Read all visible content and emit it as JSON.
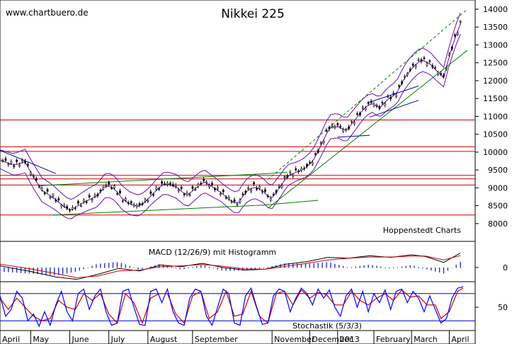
{
  "site": "www.chartbuero.de",
  "credit": "Hoppenstedt Charts",
  "colors": {
    "price": "#000000",
    "hline": "#cc0000",
    "band": "#6a0dad",
    "trend": "#008000",
    "channel": "#0000aa",
    "macd_hist": "#2233cc",
    "signal": "#cc0000",
    "stoch_k": "#0000ff",
    "stoch_d": "#cc0000",
    "stoch_line": "#0000cc"
  },
  "chart_data": [
    {
      "type": "candlestick",
      "title": "Nikkei 225",
      "ylim": [
        7700,
        14000
      ],
      "yticks": [
        {
          "v": 14000,
          "label": "14000"
        },
        {
          "v": 13500,
          "label": "13500"
        },
        {
          "v": 13000,
          "label": "13000"
        },
        {
          "v": 12500,
          "label": "12500"
        },
        {
          "v": 12000,
          "label": "12000"
        },
        {
          "v": 11500,
          "label": "11500"
        },
        {
          "v": 11000,
          "label": "11000"
        },
        {
          "v": 10500,
          "label": "10500"
        },
        {
          "v": 10000,
          "label": "10000"
        },
        {
          "v": 9500,
          "label": "9500"
        },
        {
          "v": 9000,
          "label": "9000"
        },
        {
          "v": 8500,
          "label": "8500"
        },
        {
          "v": 8000,
          "label": "8000"
        }
      ],
      "xlabels": [
        {
          "day": 0,
          "label": "April"
        },
        {
          "day": 22,
          "label": "May"
        },
        {
          "day": 50,
          "label": "June"
        },
        {
          "day": 78,
          "label": "July"
        },
        {
          "day": 106,
          "label": "August"
        },
        {
          "day": 138,
          "label": "September"
        },
        {
          "day": 195,
          "label": "November"
        },
        {
          "day": 222,
          "label": "December"
        },
        {
          "day": 242,
          "label": "2013"
        },
        {
          "day": 268,
          "label": "February"
        },
        {
          "day": 295,
          "label": "March"
        },
        {
          "day": 322,
          "label": "April"
        }
      ],
      "xdays": 335,
      "horizontal_lines": [
        10900,
        10150,
        10020,
        9350,
        9250,
        9080,
        8240
      ],
      "close": [
        {
          "d": 0,
          "v": 9800
        },
        {
          "d": 10,
          "v": 9650
        },
        {
          "d": 18,
          "v": 9750
        },
        {
          "d": 22,
          "v": 9450
        },
        {
          "d": 30,
          "v": 8950
        },
        {
          "d": 38,
          "v": 8750
        },
        {
          "d": 44,
          "v": 8550
        },
        {
          "d": 50,
          "v": 8380
        },
        {
          "d": 56,
          "v": 8520
        },
        {
          "d": 62,
          "v": 8650
        },
        {
          "d": 70,
          "v": 8800
        },
        {
          "d": 76,
          "v": 9100
        },
        {
          "d": 82,
          "v": 9000
        },
        {
          "d": 88,
          "v": 8700
        },
        {
          "d": 94,
          "v": 8550
        },
        {
          "d": 100,
          "v": 8500
        },
        {
          "d": 106,
          "v": 8700
        },
        {
          "d": 112,
          "v": 8950
        },
        {
          "d": 118,
          "v": 9150
        },
        {
          "d": 126,
          "v": 9050
        },
        {
          "d": 134,
          "v": 8800
        },
        {
          "d": 140,
          "v": 9000
        },
        {
          "d": 146,
          "v": 9200
        },
        {
          "d": 152,
          "v": 9050
        },
        {
          "d": 158,
          "v": 8900
        },
        {
          "d": 164,
          "v": 8700
        },
        {
          "d": 170,
          "v": 8550
        },
        {
          "d": 176,
          "v": 8900
        },
        {
          "d": 182,
          "v": 9050
        },
        {
          "d": 188,
          "v": 8950
        },
        {
          "d": 194,
          "v": 8700
        },
        {
          "d": 200,
          "v": 9000
        },
        {
          "d": 206,
          "v": 9350
        },
        {
          "d": 212,
          "v": 9450
        },
        {
          "d": 218,
          "v": 9550
        },
        {
          "d": 224,
          "v": 9750
        },
        {
          "d": 230,
          "v": 10200
        },
        {
          "d": 236,
          "v": 10700
        },
        {
          "d": 242,
          "v": 10750
        },
        {
          "d": 248,
          "v": 10600
        },
        {
          "d": 254,
          "v": 10900
        },
        {
          "d": 260,
          "v": 11200
        },
        {
          "d": 266,
          "v": 11400
        },
        {
          "d": 272,
          "v": 11250
        },
        {
          "d": 278,
          "v": 11500
        },
        {
          "d": 284,
          "v": 11650
        },
        {
          "d": 290,
          "v": 12100
        },
        {
          "d": 296,
          "v": 12400
        },
        {
          "d": 302,
          "v": 12600
        },
        {
          "d": 308,
          "v": 12500
        },
        {
          "d": 314,
          "v": 12250
        },
        {
          "d": 318,
          "v": 12100
        },
        {
          "d": 322,
          "v": 12700
        },
        {
          "d": 326,
          "v": 13200
        },
        {
          "d": 330,
          "v": 13600
        }
      ],
      "trendlines": [
        {
          "d1": 38,
          "v1": 8240,
          "d2": 190,
          "v2": 8520,
          "color": "trend"
        },
        {
          "d1": 28,
          "v1": 9060,
          "d2": 206,
          "v2": 9430,
          "color": "trend"
        },
        {
          "d1": 190,
          "v1": 8520,
          "d2": 228,
          "v2": 8650,
          "color": "trend"
        },
        {
          "d1": 192,
          "v1": 8430,
          "d2": 335,
          "v2": 12850,
          "color": "trend"
        },
        {
          "d1": 192,
          "v1": 9230,
          "d2": 335,
          "v2": 14000,
          "color": "trend",
          "dashed": true
        },
        {
          "d1": 0,
          "v1": 10050,
          "d2": 40,
          "v2": 9400,
          "color": "channel"
        },
        {
          "d1": 242,
          "v1": 10420,
          "d2": 265,
          "v2": 10470,
          "color": "channel"
        },
        {
          "d1": 265,
          "v1": 11400,
          "d2": 300,
          "v2": 11850,
          "color": "channel"
        },
        {
          "d1": 265,
          "v1": 10980,
          "d2": 300,
          "v2": 11450,
          "color": "channel"
        }
      ]
    },
    {
      "type": "line",
      "title": "MACD (12/26/9) mit Histogramm",
      "ylim": [
        -1,
        1
      ],
      "yticks": [
        {
          "v": 0,
          "label": "0"
        }
      ],
      "macd": [
        {
          "d": 0,
          "v": 0.1
        },
        {
          "d": 20,
          "v": -0.2
        },
        {
          "d": 40,
          "v": -0.55
        },
        {
          "d": 55,
          "v": -0.7
        },
        {
          "d": 70,
          "v": -0.4
        },
        {
          "d": 85,
          "v": -0.05
        },
        {
          "d": 100,
          "v": -0.2
        },
        {
          "d": 115,
          "v": 0.15
        },
        {
          "d": 130,
          "v": 0.05
        },
        {
          "d": 145,
          "v": 0.25
        },
        {
          "d": 160,
          "v": 0.0
        },
        {
          "d": 175,
          "v": -0.15
        },
        {
          "d": 190,
          "v": -0.1
        },
        {
          "d": 205,
          "v": 0.2
        },
        {
          "d": 220,
          "v": 0.35
        },
        {
          "d": 235,
          "v": 0.6
        },
        {
          "d": 250,
          "v": 0.55
        },
        {
          "d": 265,
          "v": 0.7
        },
        {
          "d": 280,
          "v": 0.6
        },
        {
          "d": 295,
          "v": 0.75
        },
        {
          "d": 305,
          "v": 0.65
        },
        {
          "d": 318,
          "v": 0.3
        },
        {
          "d": 330,
          "v": 0.85
        }
      ],
      "signal": [
        {
          "d": 0,
          "v": 0.2
        },
        {
          "d": 20,
          "v": -0.05
        },
        {
          "d": 40,
          "v": -0.35
        },
        {
          "d": 55,
          "v": -0.6
        },
        {
          "d": 70,
          "v": -0.5
        },
        {
          "d": 85,
          "v": -0.2
        },
        {
          "d": 100,
          "v": -0.15
        },
        {
          "d": 115,
          "v": 0.05
        },
        {
          "d": 130,
          "v": 0.1
        },
        {
          "d": 145,
          "v": 0.18
        },
        {
          "d": 160,
          "v": 0.08
        },
        {
          "d": 175,
          "v": -0.08
        },
        {
          "d": 190,
          "v": -0.1
        },
        {
          "d": 205,
          "v": 0.08
        },
        {
          "d": 220,
          "v": 0.25
        },
        {
          "d": 235,
          "v": 0.45
        },
        {
          "d": 250,
          "v": 0.55
        },
        {
          "d": 265,
          "v": 0.62
        },
        {
          "d": 280,
          "v": 0.62
        },
        {
          "d": 295,
          "v": 0.68
        },
        {
          "d": 305,
          "v": 0.68
        },
        {
          "d": 318,
          "v": 0.45
        },
        {
          "d": 330,
          "v": 0.7
        }
      ]
    },
    {
      "type": "line",
      "title": "Stochastik (5/3/3)",
      "ylim": [
        0,
        100
      ],
      "yticks": [
        {
          "v": 50,
          "label": "50"
        }
      ],
      "levels": [
        80,
        20
      ],
      "k": [
        {
          "d": 0,
          "v": 75
        },
        {
          "d": 4,
          "v": 30
        },
        {
          "d": 8,
          "v": 45
        },
        {
          "d": 12,
          "v": 85
        },
        {
          "d": 16,
          "v": 70
        },
        {
          "d": 20,
          "v": 20
        },
        {
          "d": 24,
          "v": 35
        },
        {
          "d": 28,
          "v": 8
        },
        {
          "d": 32,
          "v": 40
        },
        {
          "d": 36,
          "v": 10
        },
        {
          "d": 40,
          "v": 55
        },
        {
          "d": 44,
          "v": 85
        },
        {
          "d": 48,
          "v": 40
        },
        {
          "d": 52,
          "v": 20
        },
        {
          "d": 56,
          "v": 80
        },
        {
          "d": 60,
          "v": 90
        },
        {
          "d": 64,
          "v": 45
        },
        {
          "d": 68,
          "v": 75
        },
        {
          "d": 72,
          "v": 90
        },
        {
          "d": 76,
          "v": 40
        },
        {
          "d": 80,
          "v": 10
        },
        {
          "d": 84,
          "v": 15
        },
        {
          "d": 88,
          "v": 85
        },
        {
          "d": 92,
          "v": 90
        },
        {
          "d": 96,
          "v": 50
        },
        {
          "d": 100,
          "v": 12
        },
        {
          "d": 104,
          "v": 10
        },
        {
          "d": 108,
          "v": 85
        },
        {
          "d": 112,
          "v": 90
        },
        {
          "d": 116,
          "v": 60
        },
        {
          "d": 120,
          "v": 90
        },
        {
          "d": 124,
          "v": 40
        },
        {
          "d": 128,
          "v": 15
        },
        {
          "d": 132,
          "v": 10
        },
        {
          "d": 136,
          "v": 70
        },
        {
          "d": 140,
          "v": 90
        },
        {
          "d": 144,
          "v": 85
        },
        {
          "d": 148,
          "v": 30
        },
        {
          "d": 152,
          "v": 10
        },
        {
          "d": 156,
          "v": 50
        },
        {
          "d": 160,
          "v": 90
        },
        {
          "d": 164,
          "v": 80
        },
        {
          "d": 168,
          "v": 15
        },
        {
          "d": 172,
          "v": 10
        },
        {
          "d": 176,
          "v": 75
        },
        {
          "d": 180,
          "v": 92
        },
        {
          "d": 184,
          "v": 50
        },
        {
          "d": 188,
          "v": 12
        },
        {
          "d": 192,
          "v": 15
        },
        {
          "d": 196,
          "v": 75
        },
        {
          "d": 200,
          "v": 90
        },
        {
          "d": 204,
          "v": 85
        },
        {
          "d": 208,
          "v": 40
        },
        {
          "d": 212,
          "v": 70
        },
        {
          "d": 216,
          "v": 92
        },
        {
          "d": 220,
          "v": 80
        },
        {
          "d": 224,
          "v": 55
        },
        {
          "d": 228,
          "v": 90
        },
        {
          "d": 232,
          "v": 70
        },
        {
          "d": 236,
          "v": 88
        },
        {
          "d": 240,
          "v": 50
        },
        {
          "d": 244,
          "v": 30
        },
        {
          "d": 248,
          "v": 75
        },
        {
          "d": 252,
          "v": 90
        },
        {
          "d": 256,
          "v": 50
        },
        {
          "d": 260,
          "v": 85
        },
        {
          "d": 264,
          "v": 40
        },
        {
          "d": 268,
          "v": 80
        },
        {
          "d": 272,
          "v": 60
        },
        {
          "d": 276,
          "v": 88
        },
        {
          "d": 280,
          "v": 45
        },
        {
          "d": 284,
          "v": 85
        },
        {
          "d": 288,
          "v": 90
        },
        {
          "d": 292,
          "v": 60
        },
        {
          "d": 296,
          "v": 85
        },
        {
          "d": 300,
          "v": 70
        },
        {
          "d": 304,
          "v": 40
        },
        {
          "d": 308,
          "v": 75
        },
        {
          "d": 312,
          "v": 45
        },
        {
          "d": 316,
          "v": 15
        },
        {
          "d": 320,
          "v": 25
        },
        {
          "d": 324,
          "v": 70
        },
        {
          "d": 328,
          "v": 92
        },
        {
          "d": 332,
          "v": 95
        }
      ],
      "d": [
        {
          "d": 0,
          "v": 70
        },
        {
          "d": 6,
          "v": 45
        },
        {
          "d": 12,
          "v": 70
        },
        {
          "d": 18,
          "v": 50
        },
        {
          "d": 24,
          "v": 30
        },
        {
          "d": 30,
          "v": 20
        },
        {
          "d": 36,
          "v": 25
        },
        {
          "d": 42,
          "v": 65
        },
        {
          "d": 48,
          "v": 50
        },
        {
          "d": 54,
          "v": 45
        },
        {
          "d": 60,
          "v": 80
        },
        {
          "d": 66,
          "v": 65
        },
        {
          "d": 72,
          "v": 80
        },
        {
          "d": 78,
          "v": 35
        },
        {
          "d": 84,
          "v": 15
        },
        {
          "d": 90,
          "v": 80
        },
        {
          "d": 96,
          "v": 60
        },
        {
          "d": 102,
          "v": 15
        },
        {
          "d": 108,
          "v": 70
        },
        {
          "d": 114,
          "v": 80
        },
        {
          "d": 120,
          "v": 80
        },
        {
          "d": 126,
          "v": 35
        },
        {
          "d": 132,
          "v": 15
        },
        {
          "d": 138,
          "v": 75
        },
        {
          "d": 144,
          "v": 85
        },
        {
          "d": 150,
          "v": 25
        },
        {
          "d": 156,
          "v": 40
        },
        {
          "d": 162,
          "v": 85
        },
        {
          "d": 168,
          "v": 30
        },
        {
          "d": 174,
          "v": 35
        },
        {
          "d": 180,
          "v": 85
        },
        {
          "d": 186,
          "v": 30
        },
        {
          "d": 192,
          "v": 15
        },
        {
          "d": 198,
          "v": 80
        },
        {
          "d": 204,
          "v": 85
        },
        {
          "d": 210,
          "v": 55
        },
        {
          "d": 216,
          "v": 88
        },
        {
          "d": 222,
          "v": 70
        },
        {
          "d": 228,
          "v": 82
        },
        {
          "d": 234,
          "v": 78
        },
        {
          "d": 240,
          "v": 55
        },
        {
          "d": 246,
          "v": 55
        },
        {
          "d": 252,
          "v": 85
        },
        {
          "d": 258,
          "v": 65
        },
        {
          "d": 264,
          "v": 55
        },
        {
          "d": 270,
          "v": 70
        },
        {
          "d": 276,
          "v": 80
        },
        {
          "d": 282,
          "v": 65
        },
        {
          "d": 288,
          "v": 88
        },
        {
          "d": 294,
          "v": 72
        },
        {
          "d": 300,
          "v": 75
        },
        {
          "d": 306,
          "v": 55
        },
        {
          "d": 312,
          "v": 55
        },
        {
          "d": 316,
          "v": 25
        },
        {
          "d": 322,
          "v": 40
        },
        {
          "d": 328,
          "v": 85
        },
        {
          "d": 332,
          "v": 92
        }
      ]
    }
  ]
}
